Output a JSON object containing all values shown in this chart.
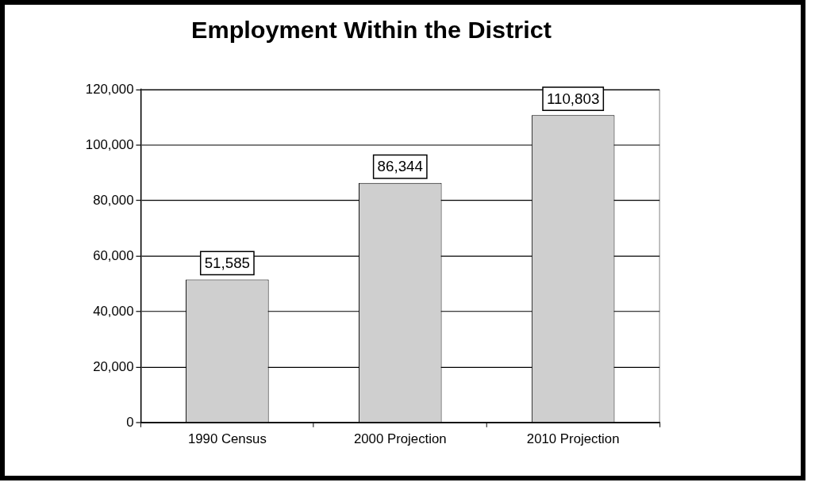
{
  "chart_data": {
    "type": "bar",
    "title": "Employment Within the District",
    "categories": [
      "1990 Census",
      "2000 Projection",
      "2010 Projection"
    ],
    "values": [
      51585,
      86344,
      110803
    ],
    "color": "#cfcfcf",
    "ylim": [
      0,
      120000
    ],
    "yticks": [
      {
        "value": 0,
        "label": "0"
      },
      {
        "value": 20000,
        "label": "20,000"
      },
      {
        "value": 40000,
        "label": "40,000"
      },
      {
        "value": 60000,
        "label": "60,000"
      },
      {
        "value": 80000,
        "label": "80,000"
      },
      {
        "value": 100000,
        "label": "100,000"
      },
      {
        "value": 120000,
        "label": "120,000"
      }
    ],
    "value_labels": [
      "51,585",
      "86,344",
      "110,803"
    ],
    "grid": "y",
    "legend": false
  }
}
